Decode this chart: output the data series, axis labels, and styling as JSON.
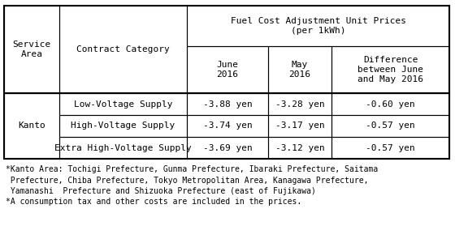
{
  "col_headers_top": "Fuel Cost Adjustment Unit Prices\n(per 1kWh)",
  "col0_header": "Service\nArea",
  "col1_header": "Contract Category",
  "sub_headers": [
    "June\n2016",
    "May\n2016",
    "Difference\nbetween June\nand May 2016"
  ],
  "kanto_label": "Kanto",
  "rows": [
    [
      "Low-Voltage Supply",
      "-3.88 yen",
      "-3.28 yen",
      "-0.60 yen"
    ],
    [
      "High-Voltage Supply",
      "-3.74 yen",
      "-3.17 yen",
      "-0.57 yen"
    ],
    [
      "Extra High-Voltage Supply",
      "-3.69 yen",
      "-3.12 yen",
      "-0.57 yen"
    ]
  ],
  "footnote1": "*Kanto Area: Tochigi Prefecture, Gunma Prefecture, Ibaraki Prefecture, Saitama",
  "footnote2": " Prefecture, Chiba Prefecture, Tokyo Metropolitan Area, Kanagawa Prefecture,",
  "footnote3": " Yamanashi  Prefecture and Shizuoka Prefecture (east of Fujikawa)",
  "footnote4": "*A consumption tax and other costs are included in the prices.",
  "bg_color": "#ffffff",
  "text_color": "#000000",
  "border_color": "#000000",
  "font_family": "monospace",
  "font_size": 8.0,
  "footnote_font_size": 7.0
}
